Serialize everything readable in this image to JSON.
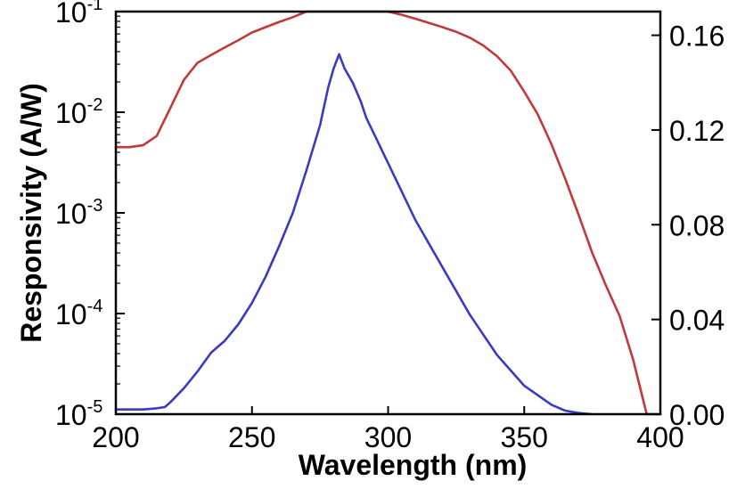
{
  "chart_data": {
    "type": "line",
    "xlabel": "Wavelength (nm)",
    "ylabel": "Responsivity (A/W)",
    "xlim": [
      200,
      400
    ],
    "xticks": [
      "200",
      "250",
      "300",
      "350",
      "400"
    ],
    "y_left": {
      "scale": "log",
      "lim": [
        1e-05,
        0.1
      ],
      "ticks": [
        {
          "value": 0.1,
          "base": "10",
          "exp": "-1"
        },
        {
          "value": 0.01,
          "base": "10",
          "exp": "-2"
        },
        {
          "value": 0.001,
          "base": "10",
          "exp": "-3"
        },
        {
          "value": 0.0001,
          "base": "10",
          "exp": "-4"
        },
        {
          "value": 1e-05,
          "base": "10",
          "exp": "-5"
        }
      ]
    },
    "y_right": {
      "scale": "linear",
      "lim": [
        0,
        0.17
      ],
      "ticks": [
        "0.16",
        "0.12",
        "0.08",
        "0.04",
        "0.00"
      ]
    },
    "series": [
      {
        "color": "#c0393b",
        "axis": "left",
        "x": [
          200,
          205,
          210,
          215,
          220,
          225,
          230,
          235,
          240,
          245,
          250,
          255,
          260,
          265,
          270,
          275,
          280,
          285,
          290,
          295,
          300,
          305,
          310,
          315,
          320,
          325,
          330,
          335,
          340,
          345,
          350,
          355,
          360,
          365,
          370,
          375,
          380,
          385,
          390,
          395,
          400
        ],
        "y": [
          0.0045,
          0.0045,
          0.0047,
          0.0058,
          0.011,
          0.021,
          0.031,
          0.037,
          0.044,
          0.052,
          0.062,
          0.07,
          0.079,
          0.088,
          0.1,
          0.115,
          0.125,
          0.125,
          0.116,
          0.107,
          0.1,
          0.093,
          0.085,
          0.077,
          0.07,
          0.063,
          0.055,
          0.046,
          0.036,
          0.026,
          0.016,
          0.0095,
          0.0048,
          0.0022,
          0.00095,
          0.0004,
          0.00019,
          9.5e-05,
          3.5e-05,
          8.5e-06,
          2.6e-06
        ]
      },
      {
        "color": "#3b3bbf",
        "axis": "right",
        "x": [
          200,
          210,
          215,
          218,
          220,
          225,
          230,
          235,
          240,
          245,
          250,
          255,
          260,
          265,
          270,
          275,
          278,
          280,
          282,
          284,
          287,
          290,
          292,
          295,
          300,
          305,
          310,
          320,
          330,
          340,
          350,
          360,
          365,
          370,
          375
        ],
        "y": [
          0.002,
          0.002,
          0.0025,
          0.003,
          0.005,
          0.011,
          0.018,
          0.026,
          0.031,
          0.038,
          0.047,
          0.058,
          0.071,
          0.085,
          0.103,
          0.122,
          0.138,
          0.146,
          0.152,
          0.146,
          0.14,
          0.132,
          0.125,
          0.118,
          0.106,
          0.094,
          0.082,
          0.062,
          0.042,
          0.025,
          0.012,
          0.004,
          0.0015,
          0.0005,
          0.0
        ]
      }
    ]
  }
}
